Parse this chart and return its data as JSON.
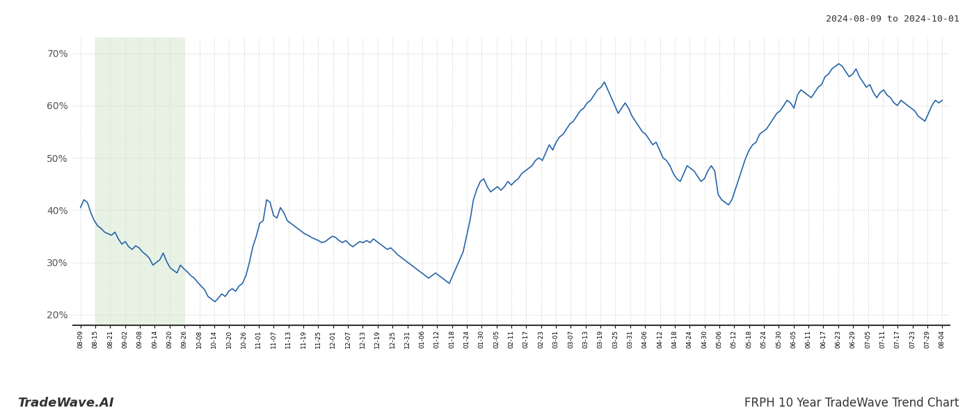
{
  "title_top_right": "2024-08-09 to 2024-10-01",
  "title_bottom_left": "TradeWave.AI",
  "title_bottom_right": "FRPH 10 Year TradeWave Trend Chart",
  "line_color": "#2563a8",
  "line_width": 1.2,
  "shading_color": "#d4e8d0",
  "shading_alpha": 0.55,
  "background_color": "#ffffff",
  "grid_color": "#cccccc",
  "grid_style": ":",
  "ylim": [
    18,
    73
  ],
  "yticks": [
    20,
    30,
    40,
    50,
    60,
    70
  ],
  "x_labels": [
    "08-09",
    "08-15",
    "08-21",
    "09-02",
    "09-08",
    "09-14",
    "09-20",
    "09-26",
    "10-08",
    "10-14",
    "10-20",
    "10-26",
    "11-01",
    "11-07",
    "11-13",
    "11-19",
    "11-25",
    "12-01",
    "12-07",
    "12-13",
    "12-19",
    "12-25",
    "12-31",
    "01-06",
    "01-12",
    "01-18",
    "01-24",
    "01-30",
    "02-05",
    "02-11",
    "02-17",
    "02-23",
    "03-01",
    "03-07",
    "03-13",
    "03-19",
    "03-25",
    "03-31",
    "04-06",
    "04-12",
    "04-18",
    "04-24",
    "04-30",
    "05-06",
    "05-12",
    "05-18",
    "05-24",
    "05-30",
    "06-05",
    "06-11",
    "06-17",
    "06-23",
    "06-29",
    "07-05",
    "07-11",
    "07-17",
    "07-23",
    "07-29",
    "08-04"
  ],
  "shade_start_label": "08-15",
  "shade_end_label": "09-26",
  "values": [
    40.5,
    42.0,
    41.5,
    39.5,
    38.0,
    37.0,
    36.5,
    35.8,
    35.5,
    35.2,
    35.8,
    34.5,
    33.5,
    34.0,
    33.0,
    32.5,
    33.2,
    32.8,
    32.0,
    31.5,
    30.8,
    29.5,
    30.0,
    30.5,
    31.8,
    30.2,
    29.0,
    28.5,
    28.0,
    29.5,
    28.8,
    28.2,
    27.5,
    27.0,
    26.2,
    25.5,
    24.8,
    23.5,
    23.0,
    22.5,
    23.2,
    24.0,
    23.5,
    24.5,
    25.0,
    24.5,
    25.5,
    26.0,
    27.5,
    30.0,
    33.0,
    35.0,
    37.5,
    38.0,
    42.0,
    41.5,
    39.0,
    38.5,
    40.5,
    39.5,
    38.0,
    37.5,
    37.0,
    36.5,
    36.0,
    35.5,
    35.2,
    34.8,
    34.5,
    34.2,
    33.8,
    34.0,
    34.5,
    35.0,
    34.8,
    34.2,
    33.8,
    34.2,
    33.5,
    33.0,
    33.5,
    34.0,
    33.8,
    34.2,
    33.8,
    34.5,
    34.0,
    33.5,
    33.0,
    32.5,
    32.8,
    32.2,
    31.5,
    31.0,
    30.5,
    30.0,
    29.5,
    29.0,
    28.5,
    28.0,
    27.5,
    27.0,
    27.5,
    28.0,
    27.5,
    27.0,
    26.5,
    26.0,
    27.5,
    29.0,
    30.5,
    32.0,
    35.0,
    38.0,
    42.0,
    44.0,
    45.5,
    46.0,
    44.5,
    43.5,
    44.0,
    44.5,
    43.8,
    44.5,
    45.5,
    44.8,
    45.5,
    46.0,
    47.0,
    47.5,
    48.0,
    48.5,
    49.5,
    50.0,
    49.5,
    51.0,
    52.5,
    51.5,
    53.0,
    54.0,
    54.5,
    55.5,
    56.5,
    57.0,
    58.0,
    59.0,
    59.5,
    60.5,
    61.0,
    62.0,
    63.0,
    63.5,
    64.5,
    63.0,
    61.5,
    60.0,
    58.5,
    59.5,
    60.5,
    59.5,
    58.0,
    57.0,
    56.0,
    55.0,
    54.5,
    53.5,
    52.5,
    53.0,
    51.5,
    50.0,
    49.5,
    48.5,
    47.0,
    46.0,
    45.5,
    47.0,
    48.5,
    48.0,
    47.5,
    46.5,
    45.5,
    46.0,
    47.5,
    48.5,
    47.5,
    43.0,
    42.0,
    41.5,
    41.0,
    42.0,
    44.0,
    46.0,
    48.0,
    50.0,
    51.5,
    52.5,
    53.0,
    54.5,
    55.0,
    55.5,
    56.5,
    57.5,
    58.5,
    59.0,
    60.0,
    61.0,
    60.5,
    59.5,
    62.0,
    63.0,
    62.5,
    62.0,
    61.5,
    62.5,
    63.5,
    64.0,
    65.5,
    66.0,
    67.0,
    67.5,
    68.0,
    67.5,
    66.5,
    65.5,
    66.0,
    67.0,
    65.5,
    64.5,
    63.5,
    64.0,
    62.5,
    61.5,
    62.5,
    63.0,
    62.0,
    61.5,
    60.5,
    60.0,
    61.0,
    60.5,
    60.0,
    59.5,
    59.0,
    58.0,
    57.5,
    57.0,
    58.5,
    60.0,
    61.0,
    60.5,
    61.0
  ]
}
